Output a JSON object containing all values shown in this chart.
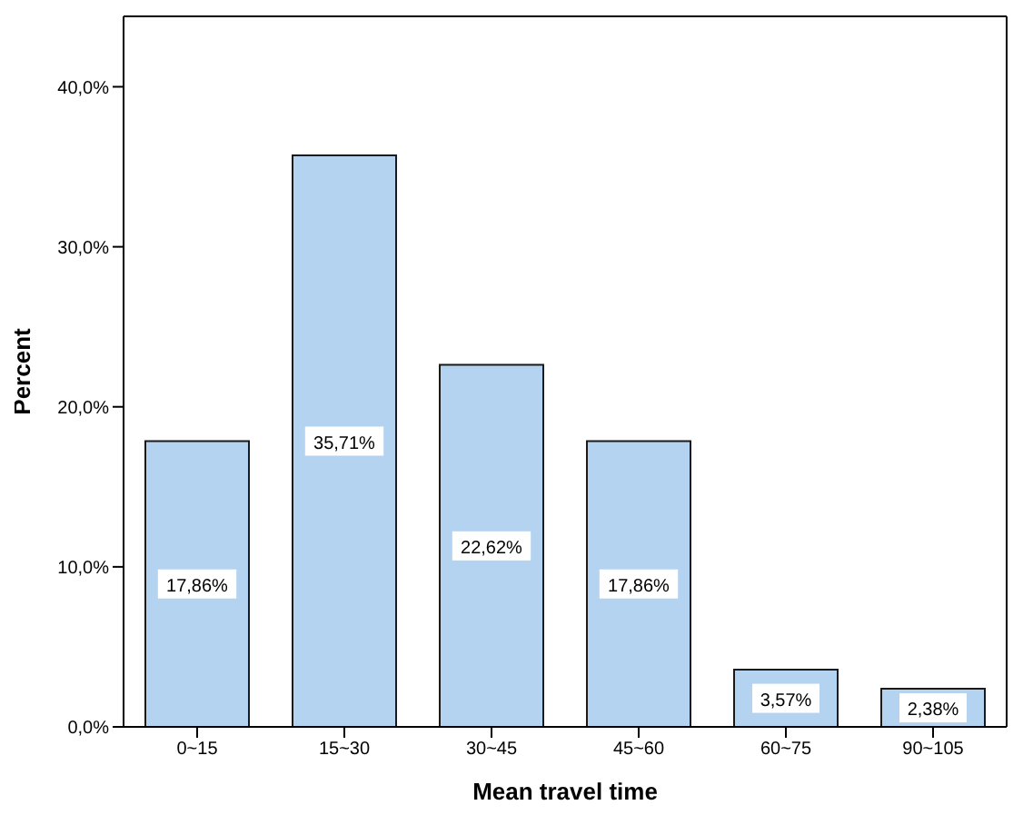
{
  "chart_data": {
    "type": "bar",
    "xlabel": "Mean travel time",
    "ylabel": "Percent",
    "categories": [
      "0~15",
      "15~30",
      "30~45",
      "45~60",
      "60~75",
      "90~105"
    ],
    "values": [
      17.86,
      35.71,
      22.62,
      17.86,
      3.57,
      2.38
    ],
    "value_labels": [
      "17,86%",
      "35,71%",
      "22,62%",
      "17,86%",
      "3,57%",
      "2,38%"
    ],
    "color": "#b4d3f0",
    "ylim": [
      0,
      44.4
    ],
    "yticks": [
      {
        "value": 0,
        "label": "0,0%"
      },
      {
        "value": 10,
        "label": "10,0%"
      },
      {
        "value": 20,
        "label": "20,0%"
      },
      {
        "value": 30,
        "label": "30,0%"
      },
      {
        "value": 40,
        "label": "40,0%"
      }
    ],
    "grid": false
  }
}
